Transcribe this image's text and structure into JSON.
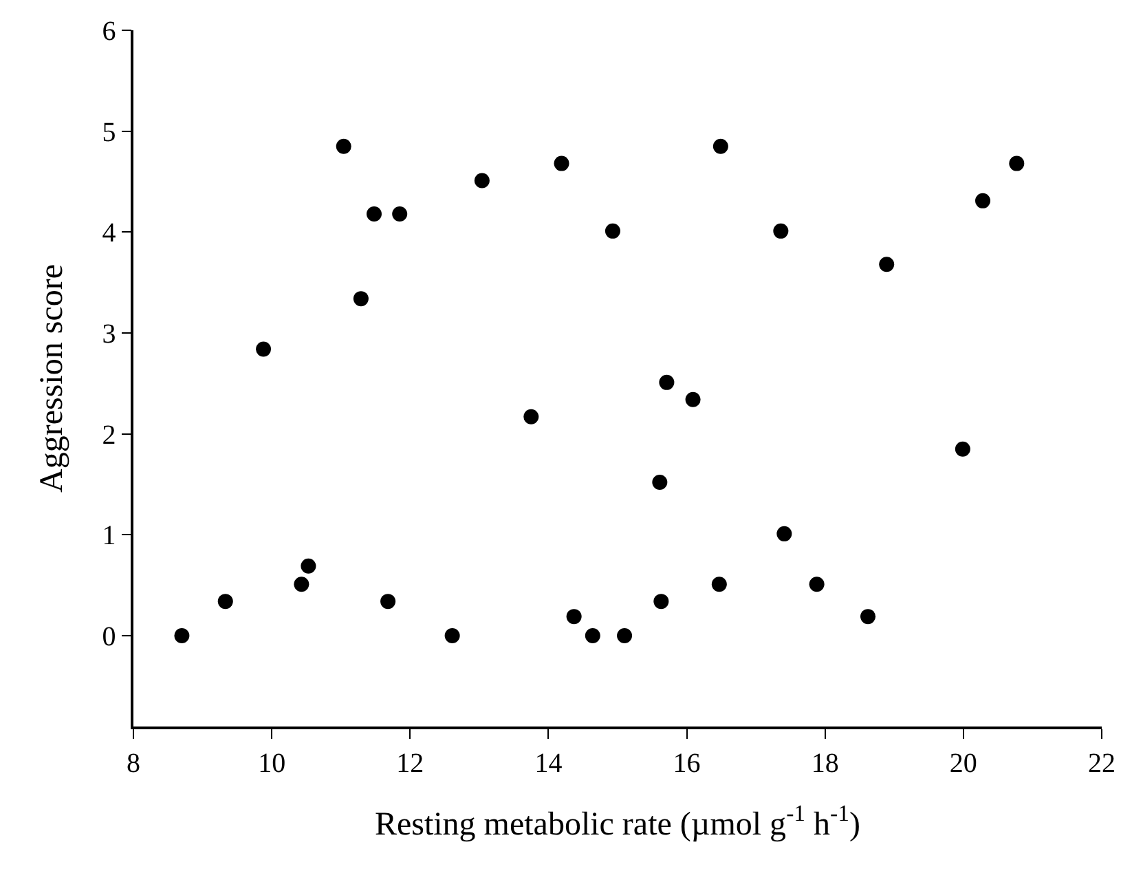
{
  "chart_data": {
    "type": "scatter",
    "xlabel": "Resting metabolic rate (µmol g$^{-1}$ h$^{-1}$)",
    "ylabel": "Aggression score",
    "x": [
      8.7,
      9.33,
      10.43,
      10.53,
      11.68,
      12.61,
      13.75,
      14.37,
      14.64,
      11.04,
      11.48,
      11.85,
      11.29,
      9.88,
      13.04,
      14.19,
      16.49,
      14.93,
      17.36,
      18.89,
      20.28,
      20.77,
      15.71,
      16.09,
      19.99,
      15.61,
      17.41,
      16.47,
      17.88,
      15.63,
      18.62,
      15.1
    ],
    "values": [
      0,
      0.34,
      0.51,
      0.69,
      0.34,
      0,
      2.17,
      0.19,
      0,
      4.85,
      4.18,
      4.18,
      3.34,
      2.84,
      4.51,
      4.68,
      4.85,
      4.01,
      4.01,
      3.68,
      4.31,
      4.68,
      2.51,
      2.34,
      1.85,
      1.52,
      1.01,
      0.51,
      0.51,
      0.34,
      0.19,
      0
    ],
    "color": "#000000",
    "marker": "circle",
    "xlim": [
      8,
      22
    ],
    "xticks": [
      8,
      10,
      12,
      14,
      16,
      18,
      20,
      22
    ],
    "ylim": [
      -0.9,
      6
    ],
    "yticks": [
      0,
      1,
      2,
      3,
      4,
      5,
      6
    ]
  }
}
